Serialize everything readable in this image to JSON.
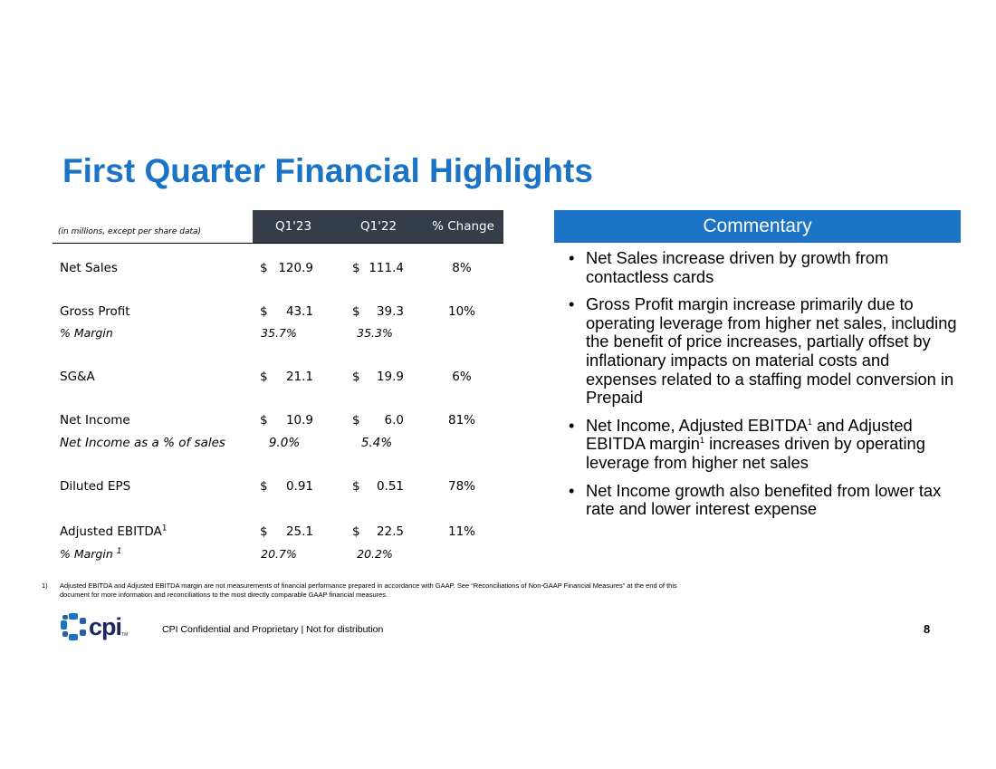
{
  "title": "First Quarter Financial Highlights",
  "table": {
    "note": "(in millions, except per share data)",
    "headers": [
      "Q1'23",
      "Q1'22",
      "% Change"
    ],
    "rows": [
      {
        "label": "Net Sales",
        "q123": "120.9",
        "q122": "111.4",
        "change": "8%"
      },
      {
        "label": "Gross Profit",
        "q123": "43.1",
        "q122": "39.3",
        "change": "10%"
      },
      {
        "label": "% Margin",
        "q123": "35.7%",
        "q122": "35.3%"
      },
      {
        "label": "SG&A",
        "q123": "21.1",
        "q122": "19.9",
        "change": "6%"
      },
      {
        "label": "Net Income",
        "q123": "10.9",
        "q122": "6.0",
        "change": "81%"
      },
      {
        "label": "Net Income as a % of sales",
        "q123": "9.0%",
        "q122": "5.4%"
      },
      {
        "label": "Diluted EPS",
        "q123": "0.91",
        "q122": "0.51",
        "change": "78%"
      },
      {
        "label": "Adjusted EBITDA",
        "sup": "1",
        "q123": "25.1",
        "q122": "22.5",
        "change": "11%"
      },
      {
        "label": "% Margin ",
        "sup": "1",
        "q123": "20.7%",
        "q122": "20.2%"
      }
    ],
    "currency": "$"
  },
  "commentary": {
    "heading": "Commentary",
    "bullet_char": "•",
    "bullets": [
      {
        "text": "Net Sales increase driven by growth from contactless cards"
      },
      {
        "text": "Gross Profit margin increase primarily due to operating leverage from higher net sales, including the benefit of price increases, partially offset by inflationary impacts on material costs and expenses related to a staffing model conversion in Prepaid"
      },
      {
        "part1": "Net Income, Adjusted EBITDA",
        "sup1": "1",
        "part2": " and Adjusted EBITDA margin",
        "sup2": "1",
        "part3": " increases driven by operating leverage from higher net sales"
      },
      {
        "text": "Net Income growth also benefited from lower tax rate and lower interest expense"
      }
    ]
  },
  "footnote": {
    "number": "1)",
    "text": "Adjusted EBITDA and Adjusted EBITDA margin are not measurements of financial performance prepared in accordance with GAAP. See “Reconciliations of Non-GAAP Financial Measures” at the end of this document for more information and reconciliations to the most directly comparable GAAP financial measures."
  },
  "footer": {
    "logo_text": "cpi",
    "logo_tm": "TM",
    "confidential": "CPI Confidential and Proprietary | Not for distribution",
    "page": "8"
  },
  "colors": {
    "accent": "#1a73c4",
    "header_dark": "#343d48",
    "logo_navy": "#1a2a5c"
  }
}
